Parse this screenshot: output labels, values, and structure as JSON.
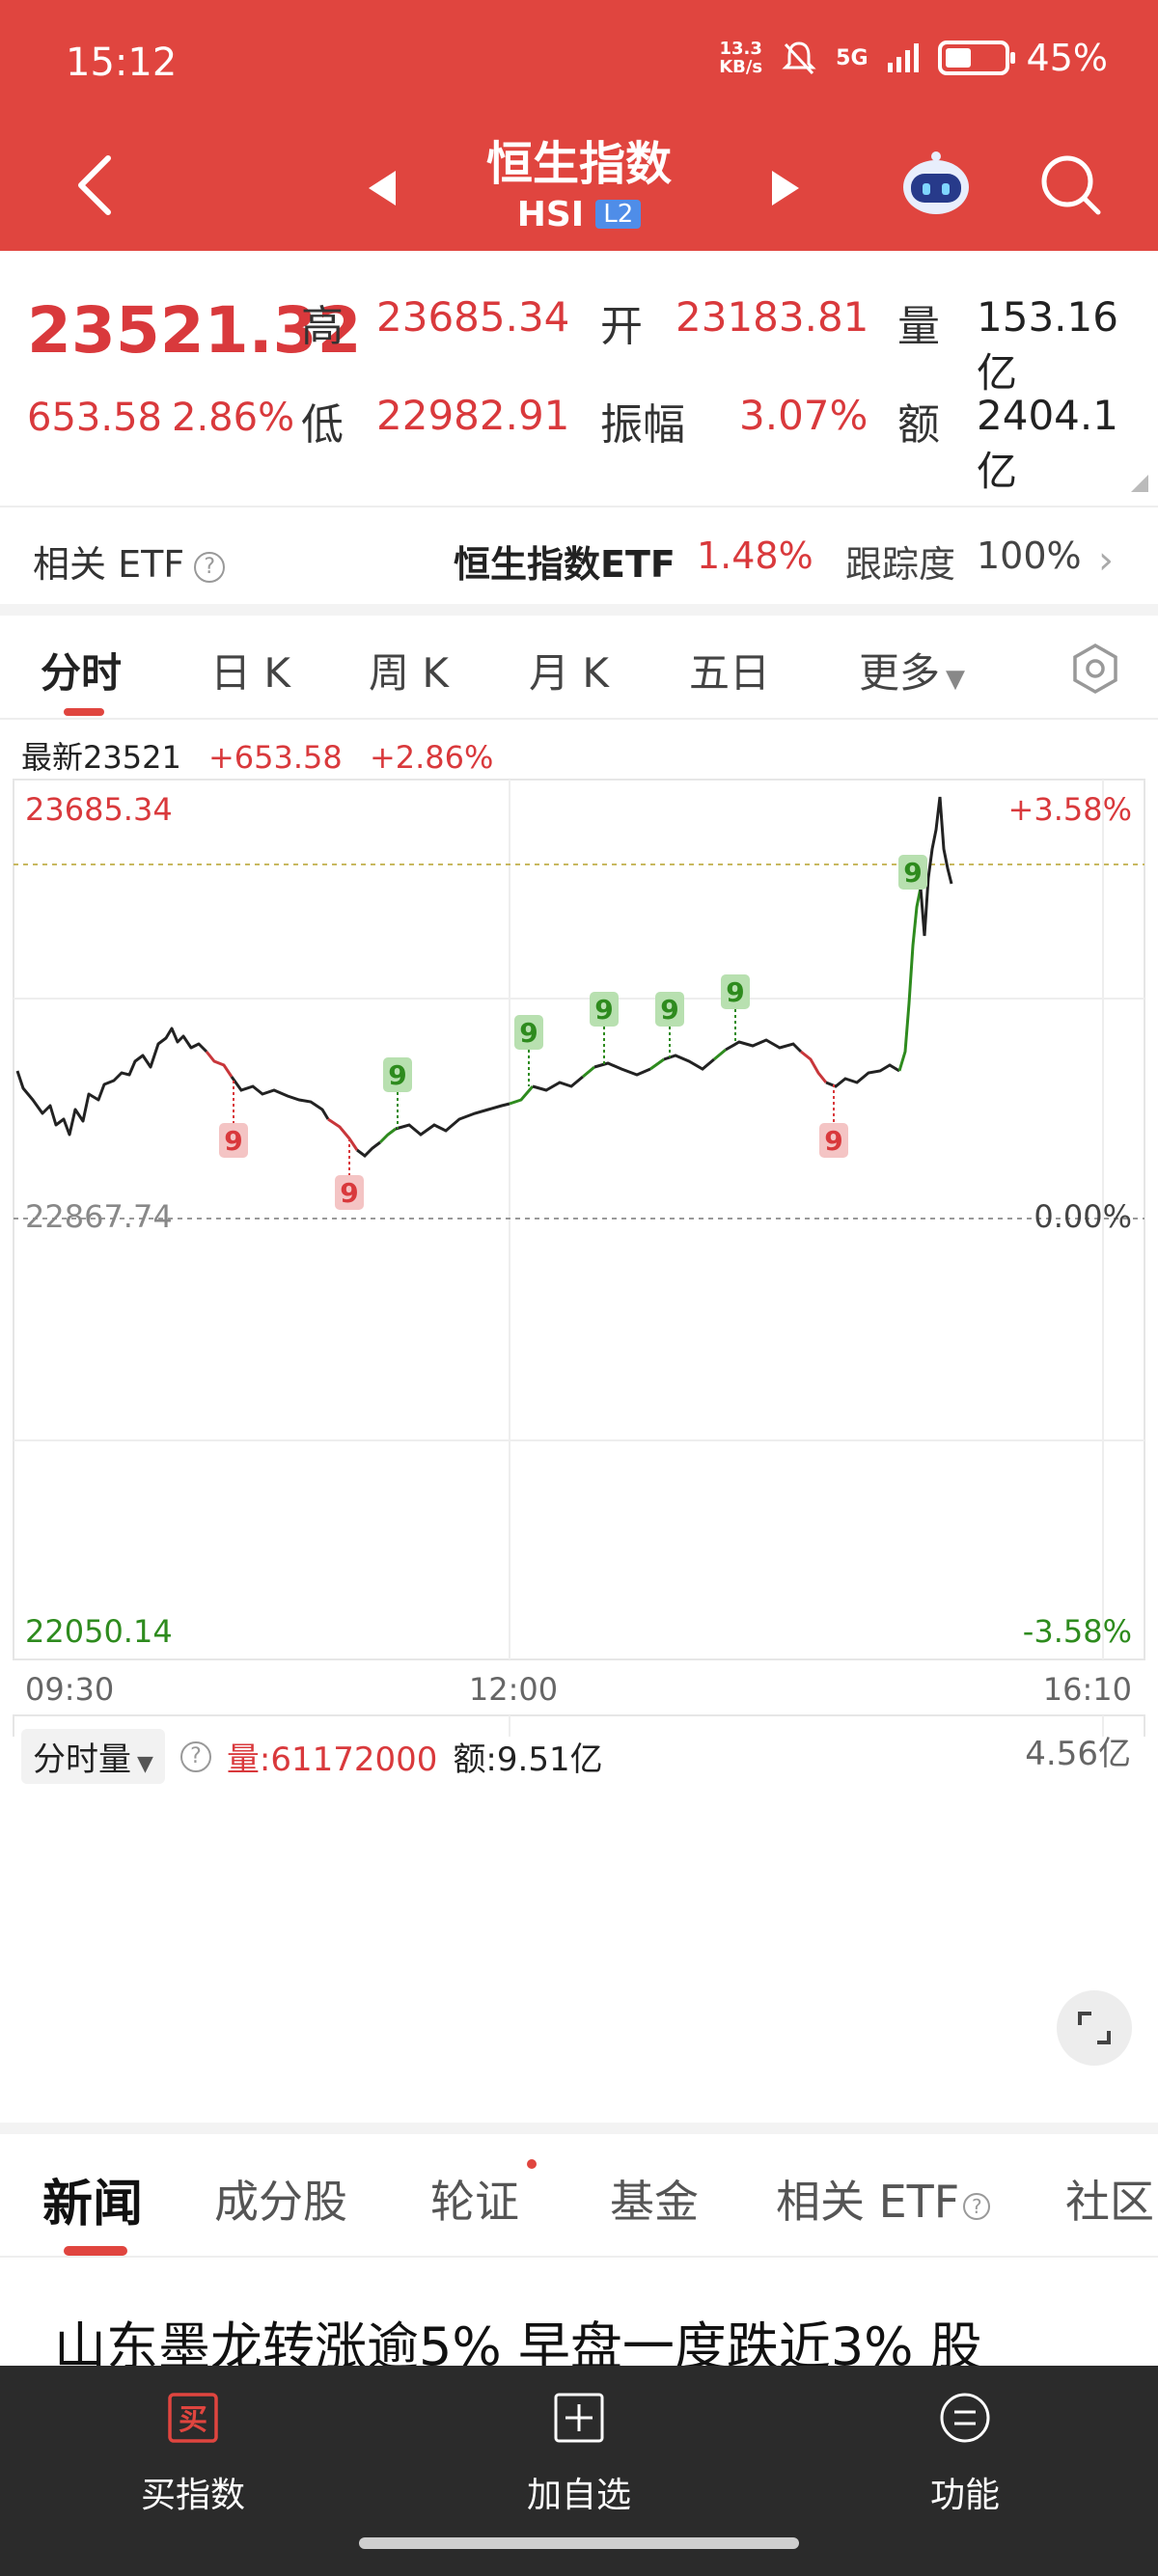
{
  "status_bar": {
    "time": "15:12",
    "net_speed_top": "13.3",
    "net_speed_bottom": "KB/s",
    "signal": "5G",
    "battery_level": 0.45,
    "battery_text": "45%"
  },
  "header": {
    "title": "恒生指数",
    "code": "HSI",
    "badge": "L2"
  },
  "quote": {
    "price": "23521.32",
    "change": "653.58",
    "change_pct": "2.86%",
    "high_label": "高",
    "high": "23685.34",
    "open_label": "开",
    "open": "23183.81",
    "volume_label": "量",
    "volume": "153.16亿",
    "low_label": "低",
    "low": "22982.91",
    "amplitude_label": "振幅",
    "amplitude": "3.07%",
    "amount_label": "额",
    "amount": "2404.1亿"
  },
  "etf": {
    "label": "相关 ETF",
    "help": "?",
    "name": "恒生指数ETF",
    "pct": "1.48%",
    "track_label": "跟踪度",
    "track_value": "100%",
    "chevron": "›"
  },
  "period_tabs": [
    "分时",
    "日 K",
    "周 K",
    "月 K",
    "五日",
    "更多"
  ],
  "chart": {
    "latest_label": "最新23521",
    "latest_change": "+653.58",
    "latest_pct": "+2.86%",
    "y_top": "23685.34",
    "y_base": "22867.74",
    "y_bottom": "22050.14",
    "pct_top": "+3.58%",
    "pct_base": "0.00%",
    "pct_bottom": "-3.58%",
    "time_start": "09:30",
    "time_mid": "12:00",
    "time_end": "16:10",
    "signal_label": "9"
  },
  "volume": {
    "selector": "分时量",
    "help": "?",
    "vol_label": "量:61172000",
    "amt_label": "额:9.51亿",
    "max": "4.56亿"
  },
  "news_tabs": [
    "新闻",
    "成分股",
    "轮证",
    "基金",
    "相关 ETF",
    "社区"
  ],
  "headline": "山东墨龙转涨逾5% 早盘一度跌近3% 股",
  "bottom_nav": [
    {
      "label": "买指数",
      "icon": "buy-icon",
      "icon_char": "买"
    },
    {
      "label": "加自选",
      "icon": "add-icon"
    },
    {
      "label": "功能",
      "icon": "menu-icon"
    }
  ],
  "colors": {
    "up": "#d9393c",
    "down": "#2e8b1e",
    "header": "#e0453f"
  }
}
